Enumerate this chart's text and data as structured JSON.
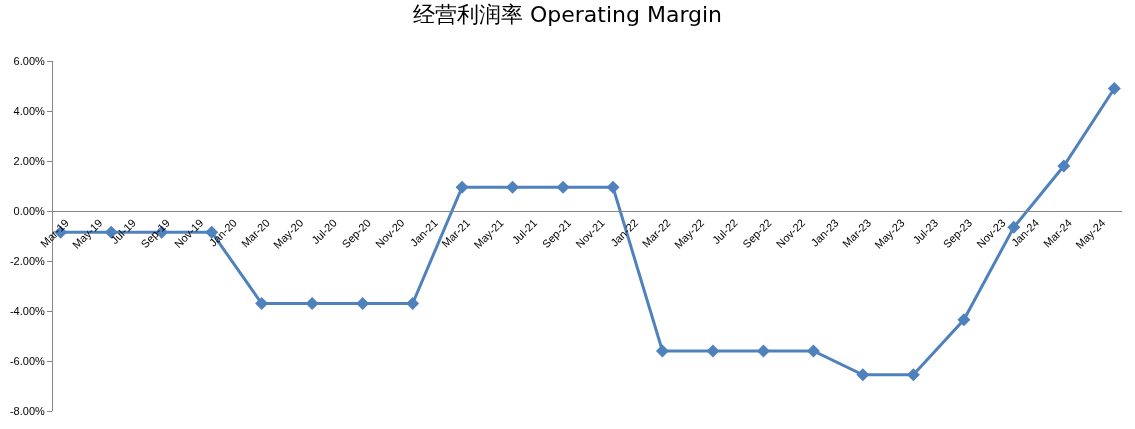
{
  "chart_data": {
    "type": "line",
    "title": "经营利润率 Operating Margin",
    "x": [
      "2019-03",
      "2019-06",
      "2019-09",
      "2019-12",
      "2020-03",
      "2020-06",
      "2020-09",
      "2020-12",
      "2021-03",
      "2021-06",
      "2021-09",
      "2021-12",
      "2022-03",
      "2022-06",
      "2022-09",
      "2022-12",
      "2023-03",
      "2023-06",
      "2023-09",
      "2023-12",
      "2024-03",
      "2024-06"
    ],
    "series": [
      {
        "color": "#4f81bd",
        "values": [
          -0.85,
          -0.85,
          -0.85,
          -0.85,
          -3.7,
          -3.7,
          -3.7,
          -3.7,
          0.95,
          0.95,
          0.95,
          0.95,
          -5.6,
          -5.6,
          -5.6,
          -5.6,
          -6.55,
          -6.55,
          -4.35,
          -0.65,
          1.8,
          4.9
        ]
      }
    ],
    "xlim": [
      "2019-02-15",
      "2024-06-15"
    ],
    "xticks": [
      {
        "value": "2019-03",
        "label": "Mar-19"
      },
      {
        "value": "2019-05",
        "label": "May-19"
      },
      {
        "value": "2019-07",
        "label": "Jul-19"
      },
      {
        "value": "2019-09",
        "label": "Sep-19"
      },
      {
        "value": "2019-11",
        "label": "Nov-19"
      },
      {
        "value": "2020-01",
        "label": "Jan-20"
      },
      {
        "value": "2020-03",
        "label": "Mar-20"
      },
      {
        "value": "2020-05",
        "label": "May-20"
      },
      {
        "value": "2020-07",
        "label": "Jul-20"
      },
      {
        "value": "2020-09",
        "label": "Sep-20"
      },
      {
        "value": "2020-11",
        "label": "Nov-20"
      },
      {
        "value": "2021-01",
        "label": "Jan-21"
      },
      {
        "value": "2021-03",
        "label": "Mar-21"
      },
      {
        "value": "2021-05",
        "label": "May-21"
      },
      {
        "value": "2021-07",
        "label": "Jul-21"
      },
      {
        "value": "2021-09",
        "label": "Sep-21"
      },
      {
        "value": "2021-11",
        "label": "Nov-21"
      },
      {
        "value": "2022-01",
        "label": "Jan-22"
      },
      {
        "value": "2022-03",
        "label": "Mar-22"
      },
      {
        "value": "2022-05",
        "label": "May-22"
      },
      {
        "value": "2022-07",
        "label": "Jul-22"
      },
      {
        "value": "2022-09",
        "label": "Sep-22"
      },
      {
        "value": "2022-11",
        "label": "Nov-22"
      },
      {
        "value": "2023-01",
        "label": "Jan-23"
      },
      {
        "value": "2023-03",
        "label": "Mar-23"
      },
      {
        "value": "2023-05",
        "label": "May-23"
      },
      {
        "value": "2023-07",
        "label": "Jul-23"
      },
      {
        "value": "2023-09",
        "label": "Sep-23"
      },
      {
        "value": "2023-11",
        "label": "Nov-23"
      },
      {
        "value": "2024-01",
        "label": "Jan-24"
      },
      {
        "value": "2024-03",
        "label": "Mar-24"
      },
      {
        "value": "2024-05",
        "label": "May-24"
      }
    ],
    "ylim": [
      -8,
      6
    ],
    "yticks": [
      {
        "value": 6,
        "label": "6.00%"
      },
      {
        "value": 4,
        "label": "4.00%"
      },
      {
        "value": 2,
        "label": "2.00%"
      },
      {
        "value": 0,
        "label": "0.00%"
      },
      {
        "value": -2,
        "label": "-2.00%"
      },
      {
        "value": -4,
        "label": "-4.00%"
      },
      {
        "value": -6,
        "label": "-6.00%"
      },
      {
        "value": -8,
        "label": "-8.00%"
      }
    ],
    "grid": false,
    "legend": false,
    "marker": "diamond",
    "line_style": "solid"
  }
}
